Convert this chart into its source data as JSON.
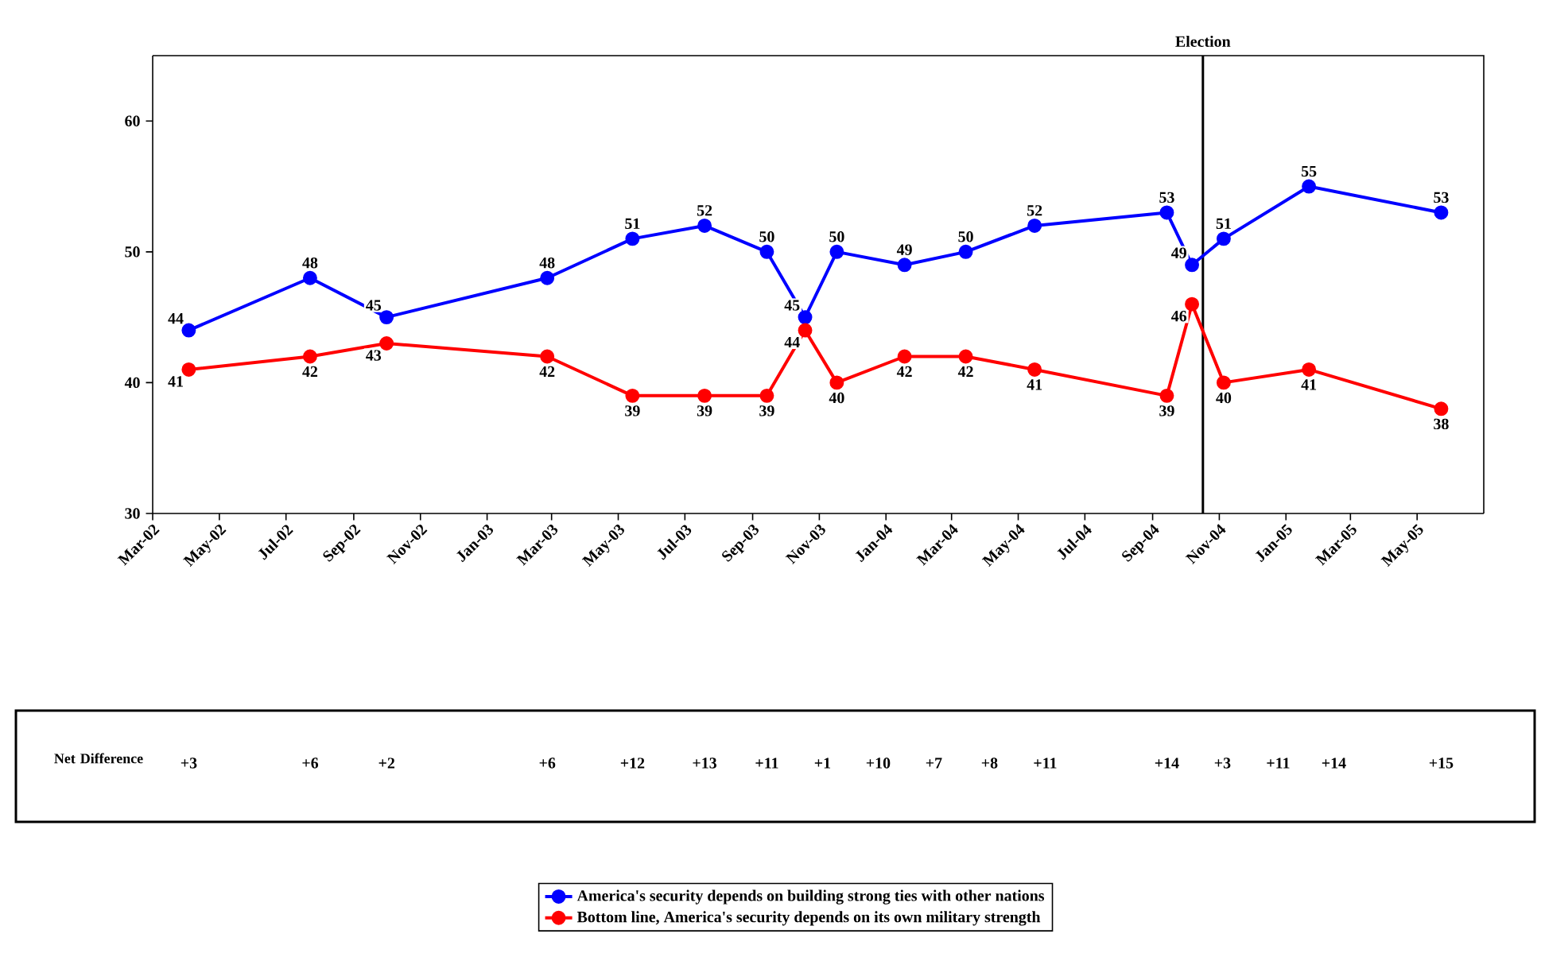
{
  "chart_data": {
    "type": "line",
    "x": [
      "2002-04-03",
      "2002-07-23",
      "2002-10-01",
      "2003-02-25",
      "2003-05-14",
      "2003-07-19",
      "2003-09-14",
      "2003-10-19",
      "2003-11-17",
      "2004-01-18",
      "2004-03-14",
      "2004-05-16",
      "2004-09-14",
      "2004-10-07",
      "2004-11-05",
      "2005-01-22",
      "2005-05-23"
    ],
    "series": [
      {
        "name": "America's security depends on building strong ties with other nations",
        "color": "#0000ff",
        "values": [
          44,
          48,
          45,
          48,
          51,
          52,
          50,
          45,
          50,
          49,
          50,
          52,
          53,
          49,
          51,
          55,
          53
        ]
      },
      {
        "name": "Bottom line, America's security depends on its own military strength",
        "color": "#ff0000",
        "values": [
          41,
          42,
          43,
          42,
          39,
          39,
          39,
          44,
          40,
          42,
          42,
          41,
          39,
          46,
          40,
          41,
          38
        ]
      }
    ],
    "xlim": [
      "2002-03",
      "2005-07"
    ],
    "xticks": [
      {
        "value": "2002-03",
        "label": "Mar-02"
      },
      {
        "value": "2002-05",
        "label": "May-02"
      },
      {
        "value": "2002-07",
        "label": "Jul-02"
      },
      {
        "value": "2002-09",
        "label": "Sep-02"
      },
      {
        "value": "2002-11",
        "label": "Nov-02"
      },
      {
        "value": "2003-01",
        "label": "Jan-03"
      },
      {
        "value": "2003-03",
        "label": "Mar-03"
      },
      {
        "value": "2003-05",
        "label": "May-03"
      },
      {
        "value": "2003-07",
        "label": "Jul-03"
      },
      {
        "value": "2003-09",
        "label": "Sep-03"
      },
      {
        "value": "2003-11",
        "label": "Nov-03"
      },
      {
        "value": "2004-01",
        "label": "Jan-04"
      },
      {
        "value": "2004-03",
        "label": "Mar-04"
      },
      {
        "value": "2004-05",
        "label": "May-04"
      },
      {
        "value": "2004-07",
        "label": "Jul-04"
      },
      {
        "value": "2004-09",
        "label": "Sep-04"
      },
      {
        "value": "2004-11",
        "label": "Nov-04"
      },
      {
        "value": "2005-01",
        "label": "Jan-05"
      },
      {
        "value": "2005-03",
        "label": "Mar-05"
      },
      {
        "value": "2005-05",
        "label": "May-05"
      }
    ],
    "ylim": [
      30,
      65
    ],
    "yticks": [
      30,
      40,
      50,
      60
    ],
    "ref_lines": [
      {
        "axis": "x",
        "value": "2004-10-17",
        "label": "Election",
        "color": "#000000"
      }
    ],
    "annotations": [
      "Net Difference",
      "+3",
      "+6",
      "+2",
      "+6",
      "+12",
      "+13",
      "+11",
      "+1",
      "+10",
      "+7",
      "+8",
      "+11",
      "+14",
      "+3",
      "+11",
      "+14",
      "+15"
    ],
    "data_labels": true,
    "marker": "circle",
    "line_style": "solid",
    "legend": "bottom"
  }
}
